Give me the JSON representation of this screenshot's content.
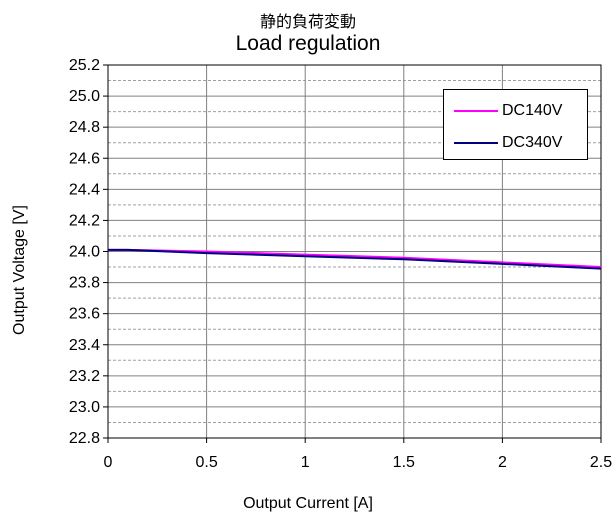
{
  "chart_data": {
    "type": "line",
    "title": "Load regulation",
    "subtitle": "静的負荷変動",
    "xlabel": "Output Current [A]",
    "ylabel": "Output Voltage [V]",
    "xlim": [
      0,
      2.5
    ],
    "ylim": [
      22.8,
      25.2
    ],
    "xticks": [
      "0",
      "0.5",
      "1",
      "1.5",
      "2",
      "2.5"
    ],
    "yticks": [
      "22.8",
      "23.0",
      "23.2",
      "23.4",
      "23.6",
      "23.8",
      "24.0",
      "24.2",
      "24.4",
      "24.6",
      "24.8",
      "25.0",
      "25.2"
    ],
    "grid": true,
    "legend_position": "top-right",
    "series": [
      {
        "name": "DC140V",
        "color": "#ff00ff",
        "x": [
          0,
          0.1,
          0.5,
          1,
          1.5,
          2,
          2.5
        ],
        "y": [
          24.01,
          24.01,
          24.0,
          23.98,
          23.96,
          23.93,
          23.9
        ]
      },
      {
        "name": "DC340V",
        "color": "#000080",
        "x": [
          0,
          0.1,
          0.5,
          1,
          1.5,
          2,
          2.5
        ],
        "y": [
          24.01,
          24.01,
          23.99,
          23.97,
          23.95,
          23.92,
          23.89
        ]
      }
    ]
  }
}
